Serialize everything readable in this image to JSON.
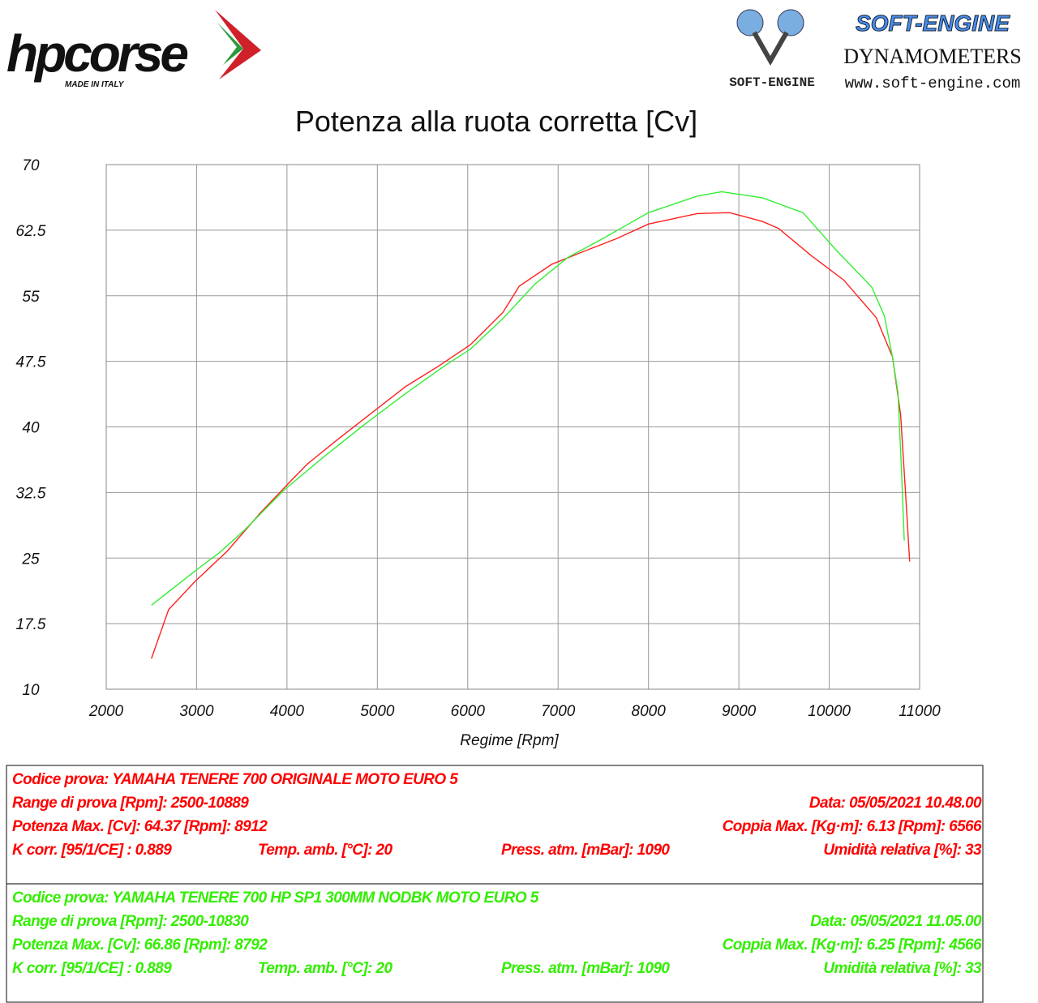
{
  "logos": {
    "hp_name": "hpcorse",
    "hp_tagline": "MADE IN ITALY",
    "se_name": "SOFT-ENGINE",
    "se_sub": "DYNAMOMETERS",
    "se_mark": "SOFT-ENGINE",
    "se_url": "www.soft-engine.com"
  },
  "chart_data": {
    "type": "line",
    "title": "Potenza alla ruota corretta [Cv]",
    "x_label": "Regime [Rpm]",
    "xlim": [
      2000,
      11000
    ],
    "xticks": [
      2000,
      3000,
      4000,
      5000,
      6000,
      7000,
      8000,
      9000,
      10000,
      11000
    ],
    "ylim": [
      10,
      70
    ],
    "yticks": [
      10,
      17.5,
      25,
      32.5,
      40,
      47.5,
      55,
      62.5,
      70
    ],
    "grid": true,
    "series": [
      {
        "color": "#ff2020",
        "x": [
          2500,
          2690,
          2980,
          3340,
          3700,
          4050,
          4230,
          4590,
          4950,
          5310,
          5670,
          6030,
          6390,
          6570,
          6930,
          7290,
          7640,
          8000,
          8360,
          8540,
          8900,
          9260,
          9440,
          9800,
          10160,
          10520,
          10700,
          10790,
          10840,
          10890
        ],
        "values": [
          13.5,
          19.1,
          22.3,
          25.8,
          30.1,
          33.9,
          35.8,
          38.8,
          41.7,
          44.6,
          46.9,
          49.4,
          53.1,
          56.1,
          58.6,
          60.1,
          61.5,
          63.2,
          64.0,
          64.4,
          64.5,
          63.5,
          62.7,
          59.6,
          56.8,
          52.5,
          48.0,
          41.4,
          33.2,
          24.6
        ]
      },
      {
        "color": "#33ee33",
        "x": [
          2500,
          2980,
          3250,
          3520,
          3970,
          4410,
          4860,
          5310,
          5760,
          6030,
          6390,
          6750,
          7110,
          7470,
          8000,
          8540,
          8810,
          9260,
          9710,
          10070,
          10470,
          10610,
          10700,
          10760,
          10800,
          10830
        ],
        "values": [
          19.6,
          23.5,
          25.6,
          28.1,
          32.8,
          36.6,
          40.3,
          43.8,
          47.1,
          48.9,
          52.4,
          56.4,
          59.4,
          61.4,
          64.5,
          66.4,
          66.9,
          66.2,
          64.5,
          60.3,
          56.0,
          52.7,
          48.0,
          44.0,
          35.0,
          27.0
        ]
      }
    ]
  },
  "tests": [
    {
      "color": "#ff0000",
      "lines": [
        [
          "Codice prova: YAMAHA TENERE 700 ORIGINALE  MOTO EURO 5"
        ],
        [
          "Range di prova [Rpm]: 2500-10889",
          "Data: 05/05/2021   10.48.00"
        ],
        [
          "Potenza Max. [Cv]: 64.37  [Rpm]: 8912",
          "Coppia Max. [Kg·m]: 6.13  [Rpm]: 6566"
        ],
        [
          "K corr. [95/1/CE] : 0.889",
          "Temp. amb. [°C]: 20",
          "Press. atm. [mBar]: 1090",
          "Umidità relativa [%]: 33"
        ]
      ]
    },
    {
      "color": "#33ee00",
      "lines": [
        [
          "Codice prova: YAMAHA TENERE 700 HP SP1 300MM NODBK  MOTO EURO 5"
        ],
        [
          "Range di prova [Rpm]: 2500-10830",
          "Data: 05/05/2021   11.05.00"
        ],
        [
          "Potenza Max. [Cv]: 66.86  [Rpm]: 8792",
          "Coppia Max. [Kg·m]: 6.25  [Rpm]: 4566"
        ],
        [
          "K corr. [95/1/CE] : 0.889",
          "Temp. amb. [°C]: 20",
          "Press. atm. [mBar]: 1090",
          "Umidità relativa [%]: 33"
        ]
      ]
    }
  ]
}
